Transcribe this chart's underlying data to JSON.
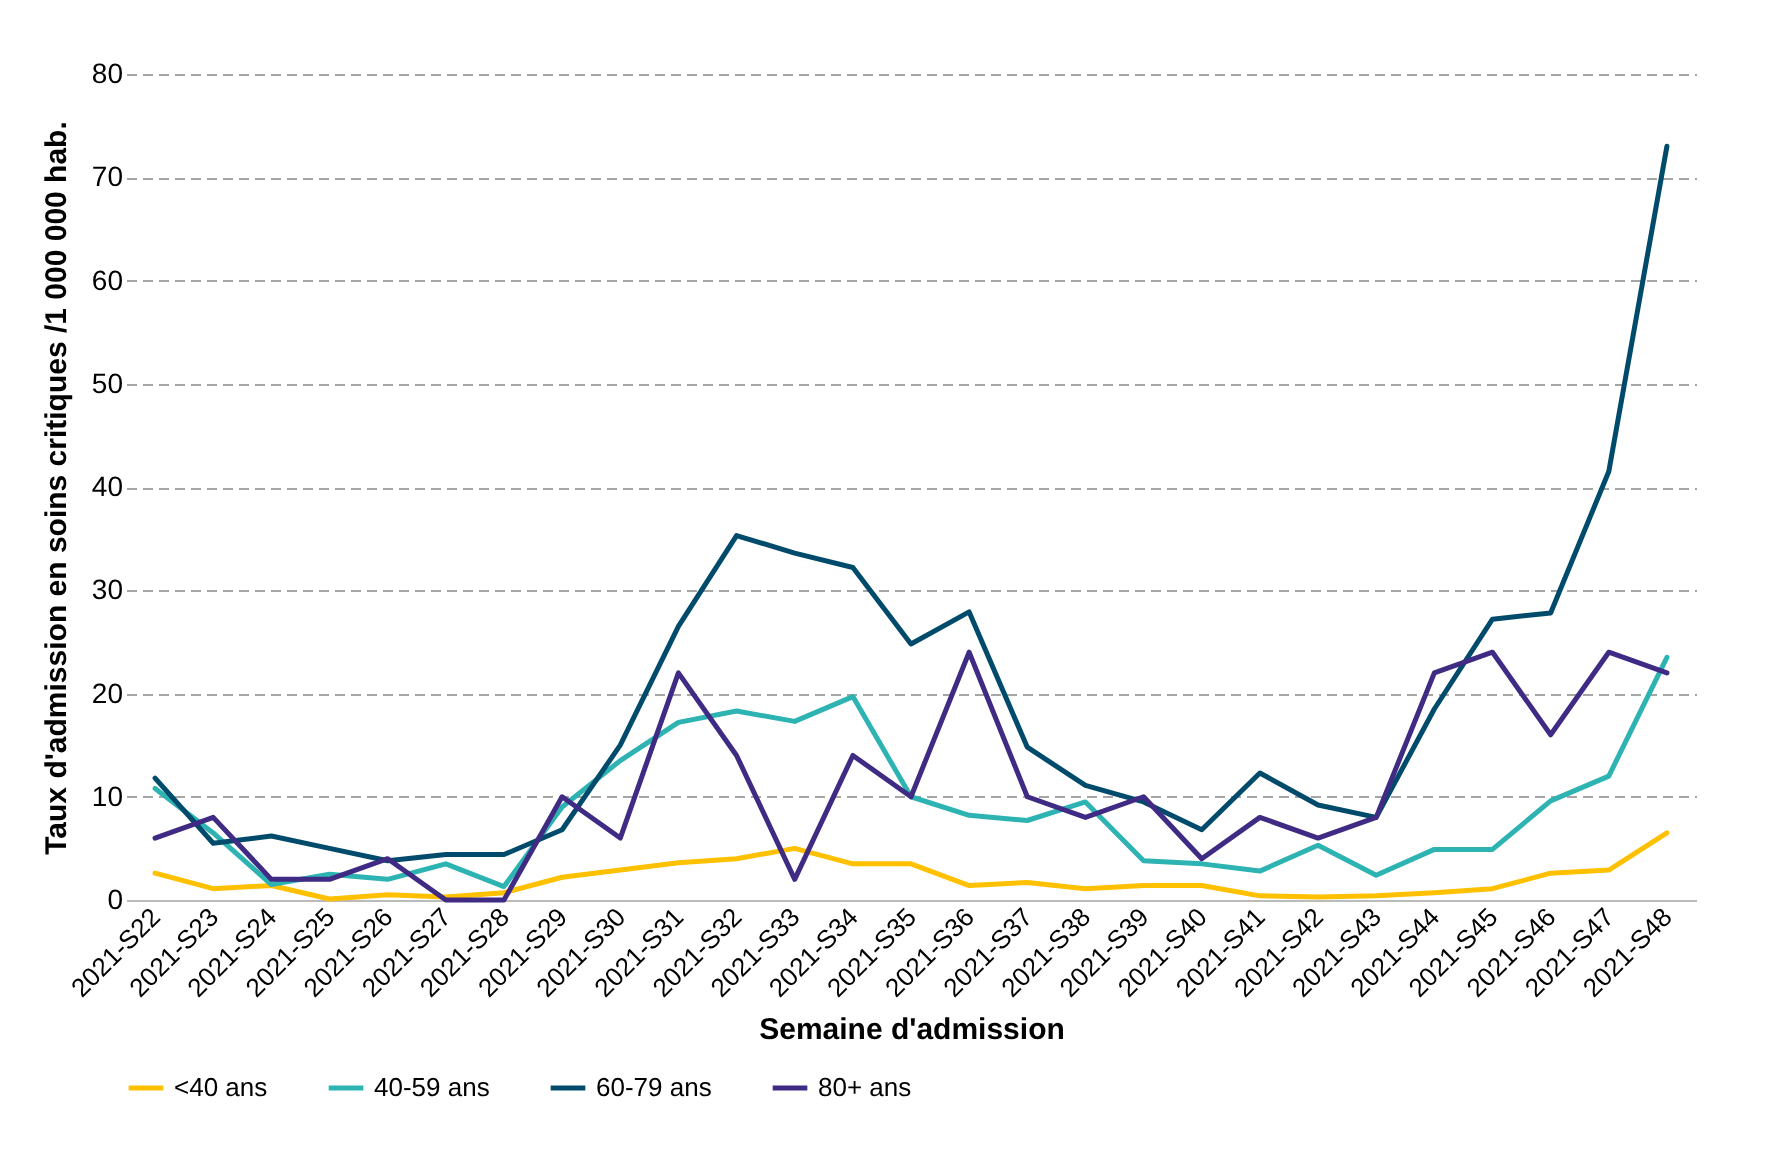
{
  "chart_data": {
    "type": "line",
    "xlabel": "Semaine d'admission",
    "ylabel": "Taux d'admission  en soins critiques  /1 000 000 hab.",
    "categories": [
      "2021-S22",
      "2021-S23",
      "2021-S24",
      "2021-S25",
      "2021-S26",
      "2021-S27",
      "2021-S28",
      "2021-S29",
      "2021-S30",
      "2021-S31",
      "2021-S32",
      "2021-S33",
      "2021-S34",
      "2021-S35",
      "2021-S36",
      "2021-S37",
      "2021-S38",
      "2021-S39",
      "2021-S40",
      "2021-S41",
      "2021-S42",
      "2021-S43",
      "2021-S44",
      "2021-S45",
      "2021-S46",
      "2021-S47",
      "2021-S48"
    ],
    "series": [
      {
        "name": "<40 ans",
        "color": "#ffc000",
        "values": [
          2.6,
          1.1,
          1.4,
          0.1,
          0.5,
          0.3,
          0.7,
          2.2,
          2.9,
          3.6,
          4.0,
          5.0,
          3.5,
          3.5,
          1.4,
          1.7,
          1.1,
          1.4,
          1.4,
          0.4,
          0.3,
          0.4,
          0.7,
          1.1,
          2.6,
          2.9,
          6.5
        ]
      },
      {
        "name": "40-59 ans",
        "color": "#2eb3b3",
        "values": [
          10.8,
          6.5,
          1.5,
          2.5,
          2.0,
          3.5,
          1.3,
          9.0,
          13.5,
          17.2,
          18.3,
          17.3,
          19.7,
          10.0,
          8.2,
          7.7,
          9.5,
          3.8,
          3.5,
          2.8,
          5.3,
          2.4,
          4.9,
          4.9,
          9.6,
          12.0,
          23.5
        ]
      },
      {
        "name": "60-79 ans",
        "color": "#004b6b",
        "values": [
          11.8,
          5.5,
          6.2,
          5.0,
          3.8,
          4.4,
          4.4,
          6.8,
          15.0,
          26.5,
          35.3,
          33.6,
          32.2,
          24.8,
          27.9,
          14.8,
          11.1,
          9.5,
          6.8,
          12.3,
          9.2,
          8.0,
          18.5,
          27.2,
          27.8,
          41.5,
          73.0
        ]
      },
      {
        "name": "80+ ans",
        "color": "#3f2a84",
        "values": [
          6.0,
          8.0,
          2.0,
          2.0,
          4.0,
          0,
          0,
          10.0,
          6.0,
          22.0,
          14.0,
          2.0,
          14.0,
          10.0,
          24.0,
          10.0,
          8.0,
          10.0,
          4.0,
          8.0,
          6.0,
          8.0,
          22.0,
          24.0,
          16.0,
          24.0,
          22.0
        ]
      }
    ],
    "ylim": [
      0,
      80
    ],
    "yticks": [
      0,
      10,
      20,
      30,
      40,
      50,
      60,
      70,
      80
    ],
    "grid": "y",
    "legend": "bottom",
    "marker": "none",
    "line_style": "solid"
  }
}
